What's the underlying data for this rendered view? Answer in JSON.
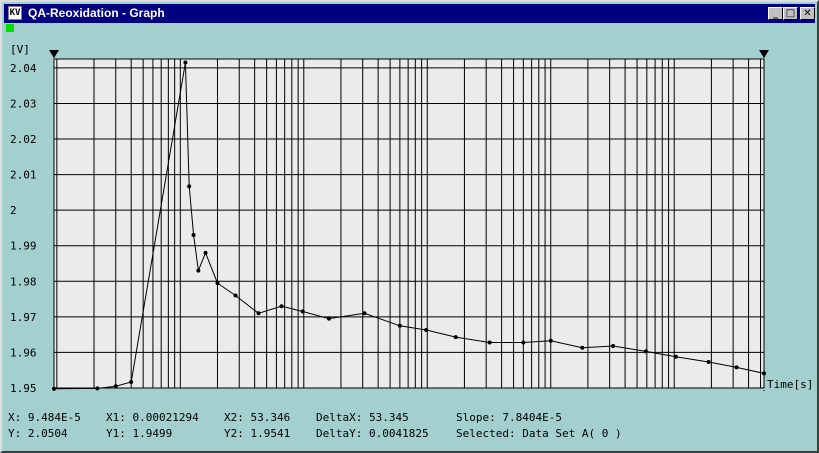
{
  "window": {
    "title": "QA-Reoxidation - Graph",
    "icon_text": "KV"
  },
  "title_buttons": {
    "minimize": "_",
    "maximize": "□",
    "close": "✕"
  },
  "chart_data": {
    "type": "line",
    "ylabel": "[V]",
    "xlabel": "Time[s]",
    "x_scale": "log",
    "xlim": [
      9.484e-05,
      53.346
    ],
    "ylim": [
      1.95,
      2.0425
    ],
    "y_ticks": [
      "2.04",
      "2.03",
      "2.02",
      "2.01",
      "2",
      "1.99",
      "1.98",
      "1.97",
      "1.96",
      "1.95"
    ],
    "x_ticks": [
      "0.001",
      "0.01",
      "0.1",
      "1",
      "10"
    ],
    "grid": true,
    "series": [
      {
        "x": [
          9.48e-05,
          0.00021294,
          0.0003,
          0.0004,
          0.0011,
          0.00118,
          0.00128,
          0.0014,
          0.0016,
          0.002,
          0.0028,
          0.0043,
          0.0066,
          0.0098,
          0.016,
          0.031,
          0.06,
          0.098,
          0.17,
          0.32,
          0.6,
          1.0,
          1.8,
          3.2,
          5.9,
          10.3,
          19,
          32,
          53.346
        ],
        "y": [
          1.9498,
          1.9499,
          1.9505,
          1.9517,
          2.0415,
          2.0067,
          1.993,
          1.983,
          1.988,
          1.9795,
          1.976,
          1.971,
          1.973,
          1.9715,
          1.9695,
          1.971,
          1.9675,
          1.9663,
          1.9643,
          1.9628,
          1.9628,
          1.9633,
          1.9613,
          1.9618,
          1.9603,
          1.9588,
          1.9573,
          1.9558,
          1.9541
        ]
      }
    ],
    "cursors": [
      9.484e-05,
      53.346
    ]
  },
  "readout": {
    "x": "X: 9.484E-5",
    "y": "Y: 2.0504",
    "x1": "X1: 0.00021294",
    "y1": "Y1: 1.9499",
    "x2": "X2: 53.346",
    "y2": "Y2: 1.9541",
    "deltax": "DeltaX: 53.345",
    "deltay": "DeltaY: 0.0041825",
    "slope": "Slope: 7.8404E-5",
    "selected": "Selected: Data Set A( 0 )"
  }
}
